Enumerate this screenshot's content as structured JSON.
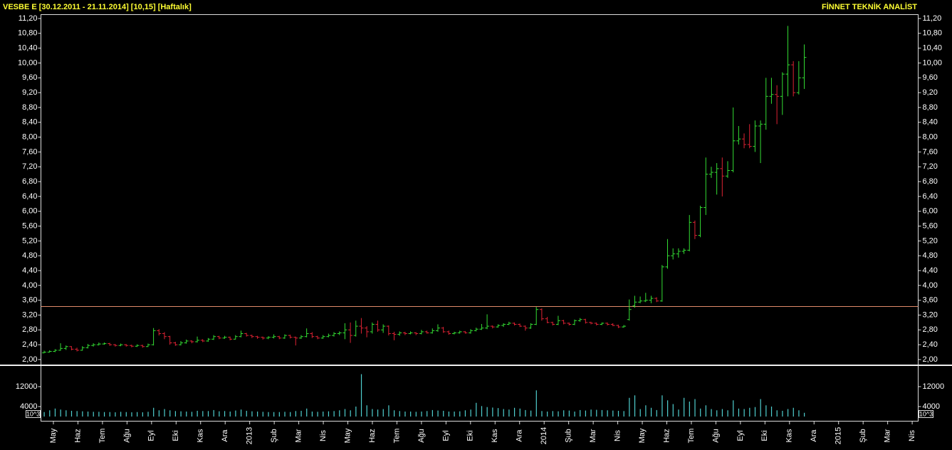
{
  "header": {
    "title": "VESBE E  [30.12.2011 - 21.11.2014]  [10,15]  [Haftalık]",
    "brand": "FİNNET TEKNİK ANALİST"
  },
  "chart_data": [
    {
      "type": "ohlc",
      "up_color": "#33dd33",
      "down_color": "#dd2233",
      "hline": 3.43,
      "hline_color": "#e08a6a",
      "ylim": [
        1.865,
        11.315
      ],
      "yticks": [
        {
          "value": 2.0,
          "label": "2,00"
        },
        {
          "value": 2.4,
          "label": "2,40"
        },
        {
          "value": 2.8,
          "label": "2,80"
        },
        {
          "value": 3.2,
          "label": "3,20"
        },
        {
          "value": 3.6,
          "label": "3,60"
        },
        {
          "value": 4.0,
          "label": "4,00"
        },
        {
          "value": 4.4,
          "label": "4,40"
        },
        {
          "value": 4.8,
          "label": "4,80"
        },
        {
          "value": 5.2,
          "label": "5,20"
        },
        {
          "value": 5.6,
          "label": "5,60"
        },
        {
          "value": 6.0,
          "label": "6,00"
        },
        {
          "value": 6.4,
          "label": "6,40"
        },
        {
          "value": 6.8,
          "label": "6,80"
        },
        {
          "value": 7.2,
          "label": "7,20"
        },
        {
          "value": 7.6,
          "label": "7,60"
        },
        {
          "value": 8.0,
          "label": "8,00"
        },
        {
          "value": 8.4,
          "label": "8,40"
        },
        {
          "value": 8.8,
          "label": "8,80"
        },
        {
          "value": 9.2,
          "label": "9,20"
        },
        {
          "value": 9.6,
          "label": "9,60"
        },
        {
          "value": 10.0,
          "label": "10,00"
        },
        {
          "value": 10.4,
          "label": "10,40"
        },
        {
          "value": 10.8,
          "label": "10,80"
        },
        {
          "value": 11.2,
          "label": "11,20"
        }
      ],
      "values": [
        [
          2.18,
          2.24,
          2.17,
          2.2
        ],
        [
          2.2,
          2.25,
          2.19,
          2.22
        ],
        [
          2.22,
          2.28,
          2.2,
          2.25
        ],
        [
          2.25,
          2.44,
          2.24,
          2.3
        ],
        [
          2.3,
          2.38,
          2.26,
          2.35
        ],
        [
          2.35,
          2.36,
          2.25,
          2.28
        ],
        [
          2.28,
          2.32,
          2.22,
          2.25
        ],
        [
          2.25,
          2.36,
          2.24,
          2.32
        ],
        [
          2.32,
          2.42,
          2.3,
          2.38
        ],
        [
          2.38,
          2.44,
          2.35,
          2.4
        ],
        [
          2.4,
          2.46,
          2.38,
          2.42
        ],
        [
          2.42,
          2.46,
          2.4,
          2.43
        ],
        [
          2.43,
          2.45,
          2.37,
          2.4
        ],
        [
          2.4,
          2.42,
          2.35,
          2.38
        ],
        [
          2.38,
          2.43,
          2.36,
          2.4
        ],
        [
          2.4,
          2.42,
          2.35,
          2.38
        ],
        [
          2.38,
          2.4,
          2.33,
          2.36
        ],
        [
          2.36,
          2.41,
          2.34,
          2.38
        ],
        [
          2.38,
          2.4,
          2.32,
          2.35
        ],
        [
          2.35,
          2.43,
          2.34,
          2.4
        ],
        [
          2.4,
          2.85,
          2.38,
          2.78
        ],
        [
          2.78,
          2.82,
          2.65,
          2.7
        ],
        [
          2.7,
          2.74,
          2.55,
          2.62
        ],
        [
          2.62,
          2.64,
          2.4,
          2.45
        ],
        [
          2.45,
          2.48,
          2.37,
          2.4
        ],
        [
          2.4,
          2.5,
          2.38,
          2.45
        ],
        [
          2.45,
          2.54,
          2.43,
          2.5
        ],
        [
          2.5,
          2.52,
          2.44,
          2.48
        ],
        [
          2.48,
          2.62,
          2.46,
          2.52
        ],
        [
          2.52,
          2.55,
          2.47,
          2.5
        ],
        [
          2.5,
          2.58,
          2.48,
          2.55
        ],
        [
          2.55,
          2.66,
          2.53,
          2.62
        ],
        [
          2.62,
          2.64,
          2.55,
          2.58
        ],
        [
          2.58,
          2.64,
          2.56,
          2.6
        ],
        [
          2.6,
          2.62,
          2.52,
          2.55
        ],
        [
          2.55,
          2.66,
          2.54,
          2.62
        ],
        [
          2.62,
          2.78,
          2.6,
          2.7
        ],
        [
          2.7,
          2.72,
          2.62,
          2.65
        ],
        [
          2.65,
          2.67,
          2.58,
          2.62
        ],
        [
          2.62,
          2.64,
          2.56,
          2.6
        ],
        [
          2.6,
          2.62,
          2.54,
          2.58
        ],
        [
          2.58,
          2.63,
          2.55,
          2.6
        ],
        [
          2.6,
          2.68,
          2.57,
          2.62
        ],
        [
          2.62,
          2.64,
          2.55,
          2.58
        ],
        [
          2.58,
          2.68,
          2.56,
          2.65
        ],
        [
          2.65,
          2.67,
          2.57,
          2.6
        ],
        [
          2.6,
          2.62,
          2.38,
          2.58
        ],
        [
          2.58,
          2.66,
          2.56,
          2.62
        ],
        [
          2.62,
          2.84,
          2.6,
          2.7
        ],
        [
          2.7,
          2.74,
          2.58,
          2.62
        ],
        [
          2.62,
          2.64,
          2.55,
          2.58
        ],
        [
          2.58,
          2.66,
          2.56,
          2.62
        ],
        [
          2.62,
          2.7,
          2.6,
          2.65
        ],
        [
          2.65,
          2.74,
          2.62,
          2.7
        ],
        [
          2.7,
          2.76,
          2.66,
          2.72
        ],
        [
          2.72,
          2.98,
          2.55,
          2.8
        ],
        [
          2.8,
          3.0,
          2.45,
          2.65
        ],
        [
          2.65,
          3.05,
          2.62,
          2.9
        ],
        [
          2.9,
          3.12,
          2.7,
          2.85
        ],
        [
          2.85,
          2.9,
          2.6,
          2.75
        ],
        [
          2.75,
          3.0,
          2.7,
          2.95
        ],
        [
          2.95,
          3.05,
          2.75,
          2.8
        ],
        [
          2.8,
          2.95,
          2.72,
          2.9
        ],
        [
          2.9,
          2.92,
          2.65,
          2.7
        ],
        [
          2.7,
          2.75,
          2.52,
          2.68
        ],
        [
          2.68,
          2.76,
          2.64,
          2.72
        ],
        [
          2.72,
          2.75,
          2.66,
          2.7
        ],
        [
          2.7,
          2.76,
          2.68,
          2.72
        ],
        [
          2.72,
          2.74,
          2.66,
          2.7
        ],
        [
          2.7,
          2.8,
          2.68,
          2.75
        ],
        [
          2.75,
          2.78,
          2.7,
          2.72
        ],
        [
          2.72,
          2.84,
          2.7,
          2.78
        ],
        [
          2.78,
          2.95,
          2.75,
          2.85
        ],
        [
          2.85,
          2.88,
          2.72,
          2.75
        ],
        [
          2.75,
          2.78,
          2.67,
          2.7
        ],
        [
          2.7,
          2.75,
          2.68,
          2.72
        ],
        [
          2.72,
          2.78,
          2.7,
          2.75
        ],
        [
          2.75,
          2.77,
          2.7,
          2.72
        ],
        [
          2.72,
          2.82,
          2.7,
          2.78
        ],
        [
          2.78,
          2.86,
          2.76,
          2.82
        ],
        [
          2.82,
          2.96,
          2.8,
          2.85
        ],
        [
          2.85,
          3.22,
          2.82,
          2.9
        ],
        [
          2.9,
          2.92,
          2.84,
          2.88
        ],
        [
          2.88,
          2.95,
          2.86,
          2.92
        ],
        [
          2.92,
          2.98,
          2.88,
          2.95
        ],
        [
          2.95,
          3.02,
          2.93,
          2.98
        ],
        [
          2.98,
          3.0,
          2.92,
          2.95
        ],
        [
          2.95,
          2.97,
          2.88,
          2.9
        ],
        [
          2.9,
          2.92,
          2.78,
          2.85
        ],
        [
          2.85,
          2.98,
          2.83,
          2.95
        ],
        [
          2.95,
          3.42,
          2.93,
          3.35
        ],
        [
          3.35,
          3.38,
          3.05,
          3.1
        ],
        [
          3.1,
          3.15,
          2.98,
          3.0
        ],
        [
          3.0,
          3.02,
          2.92,
          2.95
        ],
        [
          2.95,
          3.18,
          2.93,
          3.05
        ],
        [
          3.05,
          3.07,
          2.95,
          2.98
        ],
        [
          2.98,
          3.0,
          2.92,
          2.95
        ],
        [
          2.95,
          3.08,
          2.93,
          3.05
        ],
        [
          3.05,
          3.12,
          3.02,
          3.08
        ],
        [
          3.08,
          3.1,
          2.97,
          3.0
        ],
        [
          3.0,
          3.02,
          2.95,
          2.98
        ],
        [
          2.98,
          3.0,
          2.92,
          2.95
        ],
        [
          2.95,
          3.0,
          2.93,
          2.98
        ],
        [
          2.98,
          3.0,
          2.92,
          2.95
        ],
        [
          2.95,
          2.98,
          2.9,
          2.92
        ],
        [
          2.92,
          2.94,
          2.85,
          2.88
        ],
        [
          2.88,
          2.93,
          2.86,
          2.9
        ],
        [
          3.08,
          3.62,
          3.05,
          3.35
        ],
        [
          3.45,
          3.72,
          3.4,
          3.55
        ],
        [
          3.55,
          3.7,
          3.52,
          3.58
        ],
        [
          3.58,
          3.8,
          3.55,
          3.6
        ],
        [
          3.6,
          3.72,
          3.52,
          3.65
        ],
        [
          3.65,
          3.68,
          3.55,
          3.58
        ],
        [
          3.58,
          4.55,
          3.56,
          4.5
        ],
        [
          4.5,
          5.25,
          4.45,
          4.8
        ],
        [
          4.8,
          5.0,
          4.7,
          4.85
        ],
        [
          4.85,
          5.0,
          4.75,
          4.92
        ],
        [
          4.92,
          5.0,
          4.85,
          4.95
        ],
        [
          4.95,
          5.9,
          4.92,
          5.7
        ],
        [
          5.7,
          5.75,
          5.25,
          5.35
        ],
        [
          5.35,
          6.15,
          5.3,
          6.1
        ],
        [
          6.1,
          7.45,
          5.9,
          7.0
        ],
        [
          7.0,
          7.2,
          6.9,
          7.05
        ],
        [
          7.05,
          7.3,
          6.45,
          7.15
        ],
        [
          7.15,
          7.45,
          6.4,
          6.95
        ],
        [
          6.95,
          7.35,
          6.9,
          7.1
        ],
        [
          7.1,
          8.8,
          7.05,
          7.9
        ],
        [
          7.9,
          8.3,
          7.8,
          7.95
        ],
        [
          7.95,
          8.1,
          7.7,
          7.8
        ],
        [
          7.8,
          8.35,
          7.7,
          7.75
        ],
        [
          7.75,
          8.45,
          7.6,
          8.3
        ],
        [
          8.3,
          8.45,
          7.3,
          8.35
        ],
        [
          8.35,
          9.6,
          8.2,
          9.1
        ],
        [
          9.1,
          9.6,
          8.9,
          9.15
        ],
        [
          9.15,
          9.4,
          8.35,
          9.1
        ],
        [
          9.1,
          9.75,
          8.6,
          9.7
        ],
        [
          9.7,
          11.0,
          9.1,
          9.95
        ],
        [
          9.95,
          10.05,
          9.1,
          9.2
        ],
        [
          9.2,
          10.05,
          9.15,
          9.6
        ],
        [
          9.6,
          10.5,
          9.3,
          10.15
        ]
      ]
    },
    {
      "type": "bar",
      "color": "#4fcfcf",
      "unit_label": "10^3",
      "ylim": [
        -2000,
        20286
      ],
      "yticks": [
        4000,
        12000
      ],
      "xlabels": [
        "May",
        "Haz",
        "Tem",
        "Ağu",
        "Eyl",
        "Eki",
        "Kas",
        "Ara",
        "2013",
        "Şub",
        "Mar",
        "Nis",
        "May",
        "Haz",
        "Tem",
        "Ağu",
        "Eyl",
        "Eki",
        "Kas",
        "Ara",
        "2014",
        "Şub",
        "Mar",
        "Nis",
        "May",
        "Haz",
        "Tem",
        "Ağu",
        "Eyl",
        "Eki",
        "Kas",
        "Ara",
        "2015",
        "Şub",
        "Mar",
        "Nis"
      ],
      "values": [
        1800,
        2500,
        3200,
        2800,
        2500,
        2300,
        2200,
        2100,
        2000,
        1900,
        1900,
        1800,
        1800,
        1700,
        1900,
        1800,
        1700,
        1800,
        1700,
        1900,
        3500,
        2500,
        3000,
        2500,
        2200,
        2100,
        2000,
        1900,
        2300,
        2200,
        2200,
        2600,
        2100,
        2200,
        2000,
        2400,
        2800,
        2300,
        2100,
        2000,
        1900,
        1800,
        1800,
        1800,
        1900,
        1800,
        2200,
        2300,
        3200,
        2000,
        1900,
        2000,
        2100,
        2200,
        2500,
        3000,
        2500,
        4000,
        17000,
        4500,
        3000,
        2800,
        3000,
        4500,
        2500,
        2200,
        2000,
        2000,
        1900,
        2000,
        2200,
        2600,
        2400,
        2300,
        2000,
        2000,
        2100,
        2500,
        2800,
        5500,
        4200,
        3800,
        3600,
        3400,
        3000,
        2800,
        3500,
        3200,
        2600,
        2400,
        10500,
        2200,
        2000,
        2200,
        2100,
        2500,
        2400,
        2000,
        2600,
        2400,
        2800,
        2700,
        2600,
        2500,
        2400,
        2300,
        2200,
        7500,
        8500,
        3000,
        4500,
        3500,
        2600,
        8500,
        6500,
        5000,
        2800,
        7500,
        6000,
        7000,
        3200,
        4500,
        3000,
        2500,
        3000,
        2500,
        6500,
        3200,
        3000,
        3500,
        3800,
        7000,
        4500,
        4000,
        2500,
        2300,
        3000,
        3500,
        2500,
        1500
      ]
    }
  ]
}
